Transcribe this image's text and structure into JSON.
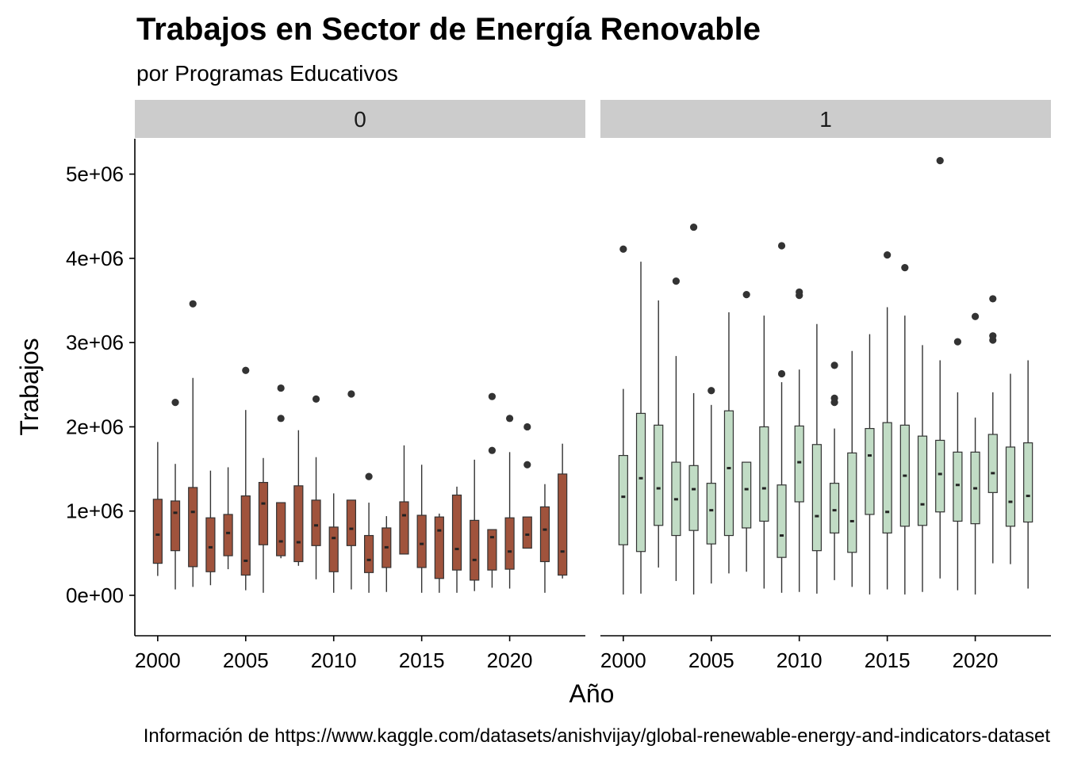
{
  "chart_data": {
    "type": "boxplot",
    "title": "Trabajos en Sector de Energía Renovable",
    "subtitle": "por Programas Educativos",
    "xlabel": "Año",
    "ylabel": "Trabajos",
    "caption": "Información de https://www.kaggle.com/datasets/anishvijay/global-renewable-energy-and-indicators-dataset",
    "ylim": [
      -480000,
      5420000
    ],
    "y_ticks": [
      0,
      1000000,
      2000000,
      3000000,
      4000000,
      5000000
    ],
    "y_tick_labels": [
      "0e+00",
      "1e+06",
      "2e+06",
      "3e+06",
      "4e+06",
      "5e+06"
    ],
    "xlim": [
      1998.7,
      2024.3
    ],
    "x_ticks": [
      2000,
      2005,
      2010,
      2015,
      2020
    ],
    "x_tick_labels": [
      "2000",
      "2005",
      "2010",
      "2015",
      "2020"
    ],
    "facets": [
      {
        "label": "0",
        "fill": "#a0533c",
        "boxes": [
          {
            "x": 2000,
            "min": 230000,
            "q1": 380000,
            "median": 720000,
            "q3": 1140000,
            "max": 1820000,
            "outliers": []
          },
          {
            "x": 2001,
            "min": 70000,
            "q1": 530000,
            "median": 980000,
            "q3": 1120000,
            "max": 1560000,
            "outliers": [
              2290000
            ]
          },
          {
            "x": 2002,
            "min": 100000,
            "q1": 340000,
            "median": 990000,
            "q3": 1280000,
            "max": 2580000,
            "outliers": [
              3460000
            ]
          },
          {
            "x": 2003,
            "min": 120000,
            "q1": 280000,
            "median": 570000,
            "q3": 920000,
            "max": 1480000,
            "outliers": []
          },
          {
            "x": 2004,
            "min": 310000,
            "q1": 470000,
            "median": 740000,
            "q3": 960000,
            "max": 1520000,
            "outliers": []
          },
          {
            "x": 2005,
            "min": 60000,
            "q1": 240000,
            "median": 410000,
            "q3": 1180000,
            "max": 2200000,
            "outliers": [
              2670000
            ]
          },
          {
            "x": 2006,
            "min": 30000,
            "q1": 600000,
            "median": 1090000,
            "q3": 1340000,
            "max": 1630000,
            "outliers": []
          },
          {
            "x": 2007,
            "min": 440000,
            "q1": 470000,
            "median": 640000,
            "q3": 1100000,
            "max": 1100000,
            "outliers": [
              2100000,
              2460000
            ]
          },
          {
            "x": 2008,
            "min": 350000,
            "q1": 400000,
            "median": 630000,
            "q3": 1300000,
            "max": 1960000,
            "outliers": []
          },
          {
            "x": 2009,
            "min": 190000,
            "q1": 590000,
            "median": 830000,
            "q3": 1130000,
            "max": 1640000,
            "outliers": [
              2330000
            ]
          },
          {
            "x": 2010,
            "min": 30000,
            "q1": 280000,
            "median": 680000,
            "q3": 810000,
            "max": 1210000,
            "outliers": []
          },
          {
            "x": 2011,
            "min": 70000,
            "q1": 590000,
            "median": 790000,
            "q3": 1130000,
            "max": 1130000,
            "outliers": [
              2390000
            ]
          },
          {
            "x": 2012,
            "min": 30000,
            "q1": 270000,
            "median": 420000,
            "q3": 710000,
            "max": 1100000,
            "outliers": [
              1410000
            ]
          },
          {
            "x": 2013,
            "min": 40000,
            "q1": 330000,
            "median": 570000,
            "q3": 800000,
            "max": 940000,
            "outliers": []
          },
          {
            "x": 2014,
            "min": 490000,
            "q1": 490000,
            "median": 950000,
            "q3": 1110000,
            "max": 1780000,
            "outliers": []
          },
          {
            "x": 2015,
            "min": 30000,
            "q1": 330000,
            "median": 610000,
            "q3": 950000,
            "max": 1550000,
            "outliers": []
          },
          {
            "x": 2016,
            "min": 30000,
            "q1": 200000,
            "median": 770000,
            "q3": 930000,
            "max": 970000,
            "outliers": []
          },
          {
            "x": 2017,
            "min": 30000,
            "q1": 300000,
            "median": 550000,
            "q3": 1190000,
            "max": 1290000,
            "outliers": []
          },
          {
            "x": 2018,
            "min": 50000,
            "q1": 180000,
            "median": 420000,
            "q3": 890000,
            "max": 1610000,
            "outliers": []
          },
          {
            "x": 2019,
            "min": 90000,
            "q1": 300000,
            "median": 690000,
            "q3": 780000,
            "max": 780000,
            "outliers": [
              1720000,
              2360000
            ]
          },
          {
            "x": 2020,
            "min": 80000,
            "q1": 310000,
            "median": 520000,
            "q3": 920000,
            "max": 1700000,
            "outliers": [
              2100000
            ]
          },
          {
            "x": 2021,
            "min": 560000,
            "q1": 560000,
            "median": 720000,
            "q3": 930000,
            "max": 930000,
            "outliers": [
              1550000,
              2000000
            ]
          },
          {
            "x": 2022,
            "min": 30000,
            "q1": 400000,
            "median": 780000,
            "q3": 1050000,
            "max": 1320000,
            "outliers": []
          },
          {
            "x": 2023,
            "min": 200000,
            "q1": 240000,
            "median": 520000,
            "q3": 1440000,
            "max": 1800000,
            "outliers": []
          }
        ]
      },
      {
        "label": "1",
        "fill": "#c1dcc5",
        "boxes": [
          {
            "x": 2000,
            "min": 10000,
            "q1": 600000,
            "median": 1170000,
            "q3": 1660000,
            "max": 2450000,
            "outliers": [
              4110000
            ]
          },
          {
            "x": 2001,
            "min": 20000,
            "q1": 520000,
            "median": 1390000,
            "q3": 2160000,
            "max": 3960000,
            "outliers": []
          },
          {
            "x": 2002,
            "min": 330000,
            "q1": 830000,
            "median": 1270000,
            "q3": 2020000,
            "max": 3500000,
            "outliers": []
          },
          {
            "x": 2003,
            "min": 170000,
            "q1": 710000,
            "median": 1140000,
            "q3": 1580000,
            "max": 2840000,
            "outliers": [
              3730000
            ]
          },
          {
            "x": 2004,
            "min": 10000,
            "q1": 770000,
            "median": 1260000,
            "q3": 1540000,
            "max": 2400000,
            "outliers": [
              4370000
            ]
          },
          {
            "x": 2005,
            "min": 140000,
            "q1": 610000,
            "median": 1010000,
            "q3": 1330000,
            "max": 2260000,
            "outliers": [
              2430000
            ]
          },
          {
            "x": 2006,
            "min": 260000,
            "q1": 710000,
            "median": 1510000,
            "q3": 2190000,
            "max": 3360000,
            "outliers": []
          },
          {
            "x": 2007,
            "min": 280000,
            "q1": 800000,
            "median": 1260000,
            "q3": 1580000,
            "max": 1580000,
            "outliers": [
              3570000
            ]
          },
          {
            "x": 2008,
            "min": 80000,
            "q1": 880000,
            "median": 1270000,
            "q3": 2000000,
            "max": 3320000,
            "outliers": []
          },
          {
            "x": 2009,
            "min": 30000,
            "q1": 450000,
            "median": 710000,
            "q3": 1310000,
            "max": 2530000,
            "outliers": [
              2630000,
              4150000
            ]
          },
          {
            "x": 2010,
            "min": 40000,
            "q1": 1110000,
            "median": 1580000,
            "q3": 2010000,
            "max": 2680000,
            "outliers": [
              3560000,
              3600000
            ]
          },
          {
            "x": 2011,
            "min": 20000,
            "q1": 530000,
            "median": 940000,
            "q3": 1790000,
            "max": 3220000,
            "outliers": []
          },
          {
            "x": 2012,
            "min": 180000,
            "q1": 740000,
            "median": 1010000,
            "q3": 1330000,
            "max": 1980000,
            "outliers": [
              2290000,
              2340000,
              2730000
            ]
          },
          {
            "x": 2013,
            "min": 100000,
            "q1": 510000,
            "median": 880000,
            "q3": 1690000,
            "max": 2900000,
            "outliers": []
          },
          {
            "x": 2014,
            "min": 10000,
            "q1": 960000,
            "median": 1660000,
            "q3": 1980000,
            "max": 3100000,
            "outliers": []
          },
          {
            "x": 2015,
            "min": 70000,
            "q1": 740000,
            "median": 990000,
            "q3": 2050000,
            "max": 3420000,
            "outliers": [
              4040000
            ]
          },
          {
            "x": 2016,
            "min": 10000,
            "q1": 820000,
            "median": 1420000,
            "q3": 2020000,
            "max": 3320000,
            "outliers": [
              3890000
            ]
          },
          {
            "x": 2017,
            "min": 40000,
            "q1": 830000,
            "median": 1080000,
            "q3": 1890000,
            "max": 2970000,
            "outliers": []
          },
          {
            "x": 2018,
            "min": 200000,
            "q1": 990000,
            "median": 1440000,
            "q3": 1840000,
            "max": 2790000,
            "outliers": [
              5160000
            ]
          },
          {
            "x": 2019,
            "min": 60000,
            "q1": 880000,
            "median": 1310000,
            "q3": 1700000,
            "max": 2410000,
            "outliers": [
              3010000
            ]
          },
          {
            "x": 2020,
            "min": 10000,
            "q1": 850000,
            "median": 1270000,
            "q3": 1700000,
            "max": 2110000,
            "outliers": [
              3310000
            ]
          },
          {
            "x": 2021,
            "min": 380000,
            "q1": 1220000,
            "median": 1450000,
            "q3": 1910000,
            "max": 2410000,
            "outliers": [
              3030000,
              3080000,
              3520000
            ]
          },
          {
            "x": 2022,
            "min": 370000,
            "q1": 820000,
            "median": 1110000,
            "q3": 1760000,
            "max": 2630000,
            "outliers": []
          },
          {
            "x": 2023,
            "min": 80000,
            "q1": 870000,
            "median": 1180000,
            "q3": 1810000,
            "max": 2790000,
            "outliers": []
          }
        ]
      }
    ],
    "grid": false,
    "legend": "none",
    "strip_fill": "#cccccc",
    "outlier_color": "#333333"
  }
}
